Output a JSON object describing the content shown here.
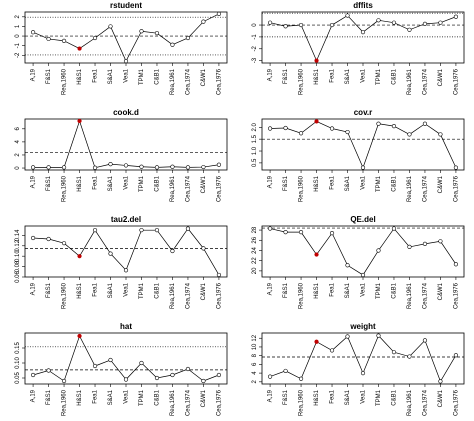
{
  "chart_data": [
    {
      "type": "line",
      "title": "rstudent",
      "categories": [
        "A,19",
        "F&S1",
        "Rea,1960",
        "H&S1",
        "Fea1",
        "S&A1",
        "Vea1",
        "TPM1",
        "C&B1",
        "Rea,1961",
        "Cea,1974",
        "C&W1",
        "Cea,1976"
      ],
      "values": [
        0.4,
        -0.3,
        -0.5,
        -1.3,
        -0.2,
        1.0,
        -2.6,
        0.5,
        0.3,
        -0.9,
        -0.2,
        1.5,
        2.3
      ],
      "ylim": [
        -2.8,
        2.5
      ],
      "yticks": [
        -2,
        -1,
        0,
        1,
        2
      ],
      "reference_lines": [
        {
          "value": 0,
          "style": "dashed"
        },
        {
          "value": 1.96,
          "style": "dotted"
        },
        {
          "value": -1.96,
          "style": "dotted"
        }
      ],
      "color": "#000000",
      "highlight": "H&S1",
      "highlight_color": "#c00000"
    },
    {
      "type": "line",
      "title": "dffits",
      "categories": [
        "A,19",
        "F&S1",
        "Rea,1960",
        "H&S1",
        "Fea1",
        "S&A1",
        "Vea1",
        "TPM1",
        "C&B1",
        "Rea,1961",
        "Cea,1974",
        "C&W1",
        "Cea,1976"
      ],
      "values": [
        0.2,
        -0.1,
        0.0,
        -3.0,
        0.0,
        0.8,
        -0.6,
        0.4,
        0.2,
        -0.4,
        0.1,
        0.2,
        0.7
      ],
      "ylim": [
        -3.2,
        1.1
      ],
      "yticks": [
        -3,
        -2,
        -1,
        0
      ],
      "reference_lines": [
        {
          "value": 0,
          "style": "dashed"
        },
        {
          "value": 1.0,
          "style": "dotted"
        },
        {
          "value": -1.0,
          "style": "dotted"
        }
      ],
      "color": "#000000",
      "highlight": "H&S1",
      "highlight_color": "#c00000"
    },
    {
      "type": "line",
      "title": "cook.d",
      "categories": [
        "A,19",
        "F&S1",
        "Rea,1960",
        "H&S1",
        "Fea1",
        "S&A1",
        "Vea1",
        "TPM1",
        "C&B1",
        "Rea,1961",
        "Cea,1974",
        "C&W1",
        "Cea,1976"
      ],
      "values": [
        0.1,
        0.1,
        0.1,
        7.2,
        0.05,
        0.6,
        0.4,
        0.2,
        0.1,
        0.2,
        0.1,
        0.15,
        0.5
      ],
      "ylim": [
        -0.3,
        7.5
      ],
      "yticks": [
        0,
        2,
        4,
        6
      ],
      "reference_lines": [
        {
          "value": 2.37,
          "style": "dashed"
        }
      ],
      "color": "#000000",
      "highlight": "H&S1",
      "highlight_color": "#c00000"
    },
    {
      "type": "line",
      "title": "cov.r",
      "categories": [
        "A,19",
        "F&S1",
        "Rea,1960",
        "H&S1",
        "Fea1",
        "S&A1",
        "Vea1",
        "TPM1",
        "C&B1",
        "Rea,1961",
        "Cea,1974",
        "C&W1",
        "Cea,1976"
      ],
      "values": [
        1.95,
        1.97,
        1.75,
        2.25,
        1.95,
        1.8,
        0.3,
        2.15,
        2.05,
        1.7,
        2.15,
        1.7,
        0.3
      ],
      "ylim": [
        0.2,
        2.35
      ],
      "yticks": [
        {
          "value": 0.5,
          "label": "0.5"
        },
        {
          "value": 1,
          "label": "1.0"
        },
        {
          "value": 1.5,
          "label": "1.5"
        },
        {
          "value": 2,
          "label": "2.0"
        }
      ],
      "reference_lines": [
        {
          "value": 1.5,
          "style": "dashed"
        }
      ],
      "color": "#000000",
      "highlight": "H&S1",
      "highlight_color": "#c00000"
    },
    {
      "type": "line",
      "title": "tau2.del",
      "categories": [
        "A,19",
        "F&S1",
        "Rea,1960",
        "H&S1",
        "Fea1",
        "S&A1",
        "Vea1",
        "TPM1",
        "C&B1",
        "Rea,1961",
        "Cea,1974",
        "C&W1",
        "Cea,1976"
      ],
      "values": [
        0.135,
        0.133,
        0.125,
        0.1,
        0.15,
        0.105,
        0.073,
        0.15,
        0.15,
        0.11,
        0.153,
        0.115,
        0.064
      ],
      "ylim": [
        0.06,
        0.158
      ],
      "yticks": [
        0.06,
        0.08,
        {
          "value": 0.1,
          "label": "0.10"
        },
        0.12,
        0.14
      ],
      "reference_lines": [
        {
          "value": 0.115,
          "style": "dashed"
        }
      ],
      "color": "#000000",
      "highlight": "H&S1",
      "highlight_color": "#c00000"
    },
    {
      "type": "line",
      "title": "QE.del",
      "categories": [
        "A,19",
        "F&S1",
        "Rea,1960",
        "H&S1",
        "Fea1",
        "S&A1",
        "Vea1",
        "TPM1",
        "C&B1",
        "Rea,1961",
        "Cea,1974",
        "C&W1",
        "Cea,1976"
      ],
      "values": [
        28.3,
        27.6,
        27.6,
        23.2,
        27.4,
        21.1,
        19.2,
        24.0,
        28.3,
        24.7,
        25.3,
        25.8,
        21.3
      ],
      "ylim": [
        18.8,
        28.8
      ],
      "yticks": [
        20,
        22,
        24,
        26,
        28
      ],
      "reference_lines": [
        {
          "value": 28.4,
          "style": "dashed"
        }
      ],
      "color": "#000000",
      "highlight": "H&S1",
      "highlight_color": "#c00000"
    },
    {
      "type": "line",
      "title": "hat",
      "categories": [
        "A,19",
        "F&S1",
        "Rea,1960",
        "H&S1",
        "Fea1",
        "S&A1",
        "Vea1",
        "TPM1",
        "C&B1",
        "Rea,1961",
        "Cea,1974",
        "C&W1",
        "Cea,1976"
      ],
      "values": [
        0.06,
        0.075,
        0.04,
        0.19,
        0.09,
        0.11,
        0.045,
        0.1,
        0.05,
        0.06,
        0.08,
        0.04,
        0.06
      ],
      "ylim": [
        0.03,
        0.2
      ],
      "yticks": [
        0.05,
        {
          "value": 0.1,
          "label": "0.10"
        },
        0.15
      ],
      "reference_lines": [
        {
          "value": 0.077,
          "style": "dashed"
        },
        {
          "value": 0.154,
          "style": "dotted"
        }
      ],
      "color": "#000000",
      "highlight": "H&S1",
      "highlight_color": "#c00000"
    },
    {
      "type": "line",
      "title": "weight",
      "categories": [
        "A,19",
        "F&S1",
        "Rea,1960",
        "H&S1",
        "Fea1",
        "S&A1",
        "Vea1",
        "TPM1",
        "C&B1",
        "Rea,1961",
        "Cea,1974",
        "C&W1",
        "Cea,1976"
      ],
      "values": [
        3.2,
        4.5,
        2.7,
        11.2,
        9.2,
        12.4,
        4.0,
        12.6,
        8.8,
        7.8,
        11.5,
        2.1,
        8.1
      ],
      "ylim": [
        1.5,
        13.2
      ],
      "yticks": [
        2,
        4,
        6,
        8,
        10,
        12
      ],
      "reference_lines": [
        {
          "value": 7.7,
          "style": "dashed"
        }
      ],
      "color": "#000000",
      "highlight": "H&S1",
      "highlight_color": "#c00000"
    }
  ]
}
